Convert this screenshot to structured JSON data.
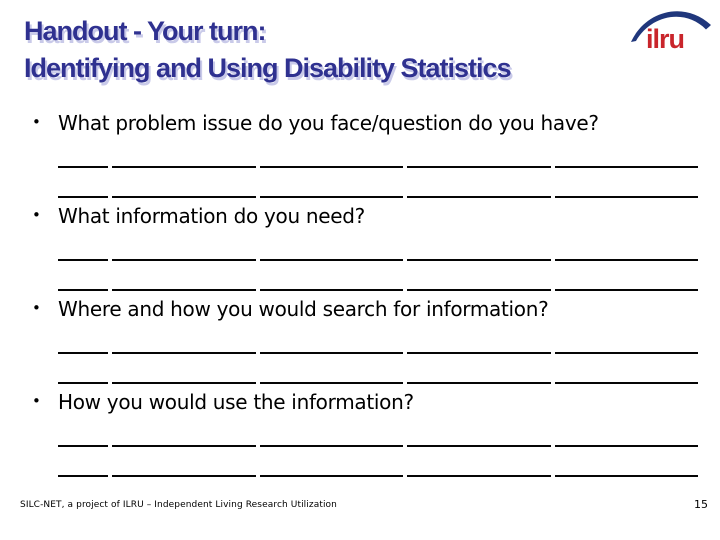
{
  "title": {
    "line1": "Handout - Your turn:",
    "line2": "Identifying and Using Disability Statistics"
  },
  "logo": {
    "text": "ilru"
  },
  "bullet_char": "•",
  "bullets": [
    {
      "question": "What problem issue do you face/question do you have?",
      "blank_lines": 2
    },
    {
      "question": "What information do you need?",
      "blank_lines": 2
    },
    {
      "question": "Where and how you would search for information?",
      "blank_lines": 2
    },
    {
      "question": "How you would use the information?",
      "blank_lines": 2
    }
  ],
  "footer": {
    "credit": "SILC-NET, a project of ILRU – Independent Living Research Utilization",
    "page_number": "15"
  },
  "colors": {
    "title_color": "#2F3190",
    "title_shadow": "#C9CAE9",
    "logo_red": "#C9252B",
    "swoosh_blue": "#20377C",
    "text_color": "#000000",
    "line_color": "#050505",
    "bg": "#FFFFFF"
  }
}
